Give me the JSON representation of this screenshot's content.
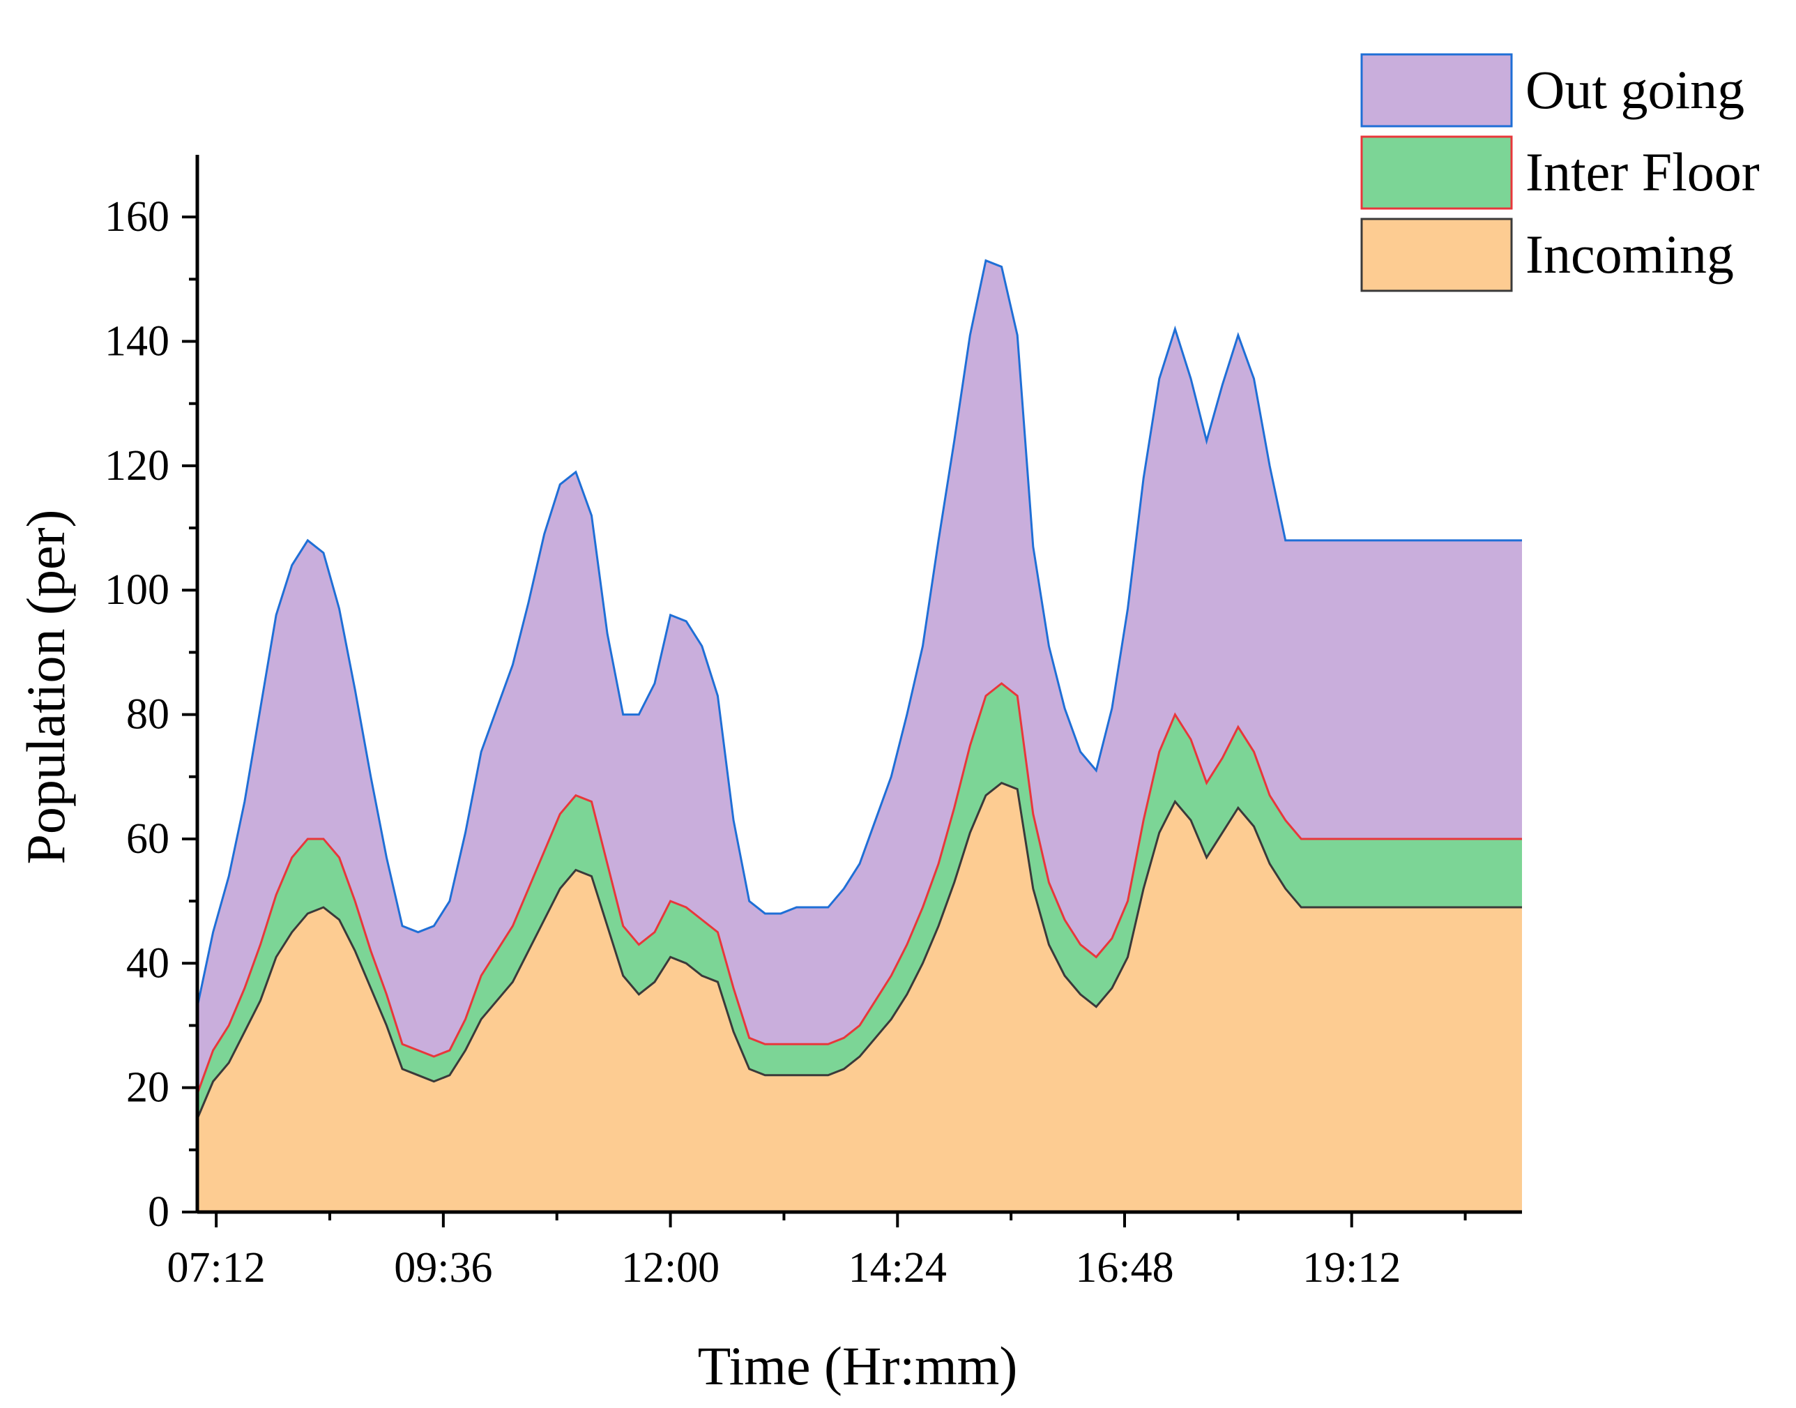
{
  "chart_data": {
    "type": "area",
    "stacked": true,
    "title": "",
    "xlabel": "Time (Hr:mm)",
    "ylabel": "Population (per)",
    "ylim": [
      0,
      170
    ],
    "yticks": [
      0,
      20,
      40,
      60,
      80,
      100,
      120,
      140,
      160
    ],
    "xlim": [
      "07:00",
      "21:00"
    ],
    "xtick_labels": [
      "07:12",
      "09:36",
      "12:00",
      "14:24",
      "16:48",
      "19:12"
    ],
    "grid": false,
    "legend_position": "top-right",
    "x": [
      "07:00",
      "07:10",
      "07:20",
      "07:30",
      "07:40",
      "07:50",
      "08:00",
      "08:10",
      "08:20",
      "08:30",
      "08:40",
      "08:50",
      "09:00",
      "09:10",
      "09:20",
      "09:30",
      "09:40",
      "09:50",
      "10:00",
      "10:10",
      "10:20",
      "10:30",
      "10:40",
      "10:50",
      "11:00",
      "11:10",
      "11:20",
      "11:30",
      "11:40",
      "11:50",
      "12:00",
      "12:10",
      "12:20",
      "12:30",
      "12:40",
      "12:50",
      "13:00",
      "13:10",
      "13:20",
      "13:30",
      "13:40",
      "13:50",
      "14:00",
      "14:10",
      "14:20",
      "14:30",
      "14:40",
      "14:50",
      "15:00",
      "15:10",
      "15:20",
      "15:30",
      "15:40",
      "15:50",
      "16:00",
      "16:10",
      "16:20",
      "16:30",
      "16:40",
      "16:50",
      "17:00",
      "17:10",
      "17:20",
      "17:30",
      "17:40",
      "17:50",
      "18:00",
      "18:10",
      "18:20",
      "18:30",
      "18:40",
      "18:50",
      "19:00",
      "19:10",
      "19:20",
      "19:30",
      "19:40",
      "19:50",
      "20:00",
      "20:10",
      "20:20",
      "20:30",
      "20:40",
      "20:50",
      "21:00"
    ],
    "series": [
      {
        "name": "Incoming",
        "color": "#fdcc92",
        "line_color": "#3a3a3a",
        "values": [
          15,
          21,
          24,
          29,
          34,
          41,
          45,
          48,
          49,
          47,
          42,
          36,
          30,
          23,
          22,
          21,
          22,
          26,
          31,
          34,
          37,
          42,
          47,
          52,
          55,
          54,
          46,
          38,
          35,
          37,
          41,
          40,
          38,
          37,
          29,
          23,
          22,
          22,
          22,
          22,
          22,
          23,
          25,
          28,
          31,
          35,
          40,
          46,
          53,
          61,
          67,
          69,
          68,
          52,
          43,
          38,
          35,
          33,
          36,
          41,
          52,
          61,
          66,
          63,
          57,
          61,
          65,
          62,
          56,
          52,
          49,
          49,
          49,
          49,
          49,
          49,
          49,
          49,
          49,
          49,
          49,
          49,
          49,
          49,
          49
        ]
      },
      {
        "name": "Inter Floor",
        "color": "#7cd596",
        "line_color": "#e8373b",
        "values": [
          4,
          5,
          6,
          7,
          9,
          10,
          12,
          12,
          11,
          10,
          8,
          6,
          5,
          4,
          4,
          4,
          4,
          5,
          7,
          8,
          9,
          10,
          11,
          12,
          12,
          12,
          10,
          8,
          8,
          8,
          9,
          9,
          9,
          8,
          7,
          5,
          5,
          5,
          5,
          5,
          5,
          5,
          5,
          6,
          7,
          8,
          9,
          10,
          12,
          14,
          16,
          16,
          15,
          12,
          10,
          9,
          8,
          8,
          8,
          9,
          11,
          13,
          14,
          13,
          12,
          12,
          13,
          12,
          11,
          11,
          11,
          11,
          11,
          11,
          11,
          11,
          11,
          11,
          11,
          11,
          11,
          11,
          11,
          11,
          11
        ]
      },
      {
        "name": "Out going",
        "color": "#c9aedc",
        "line_color": "#1f6fd6",
        "values": [
          14,
          19,
          24,
          30,
          38,
          45,
          47,
          48,
          46,
          40,
          34,
          28,
          22,
          19,
          19,
          21,
          24,
          30,
          36,
          39,
          42,
          46,
          51,
          53,
          52,
          46,
          37,
          34,
          37,
          40,
          46,
          46,
          44,
          38,
          27,
          22,
          21,
          21,
          22,
          22,
          22,
          24,
          26,
          29,
          32,
          37,
          42,
          52,
          59,
          66,
          70,
          67,
          58,
          43,
          38,
          34,
          31,
          30,
          37,
          47,
          55,
          60,
          62,
          58,
          55,
          60,
          63,
          60,
          53,
          45,
          48,
          48,
          48,
          48,
          48,
          48,
          48,
          48,
          48,
          48,
          48,
          48,
          48,
          48,
          48
        ]
      }
    ]
  },
  "colors": {
    "axis": "#000000",
    "outgoing_fill": "#c9aedc",
    "interfloor_fill": "#7cd596",
    "incoming_fill": "#fdcc92"
  }
}
